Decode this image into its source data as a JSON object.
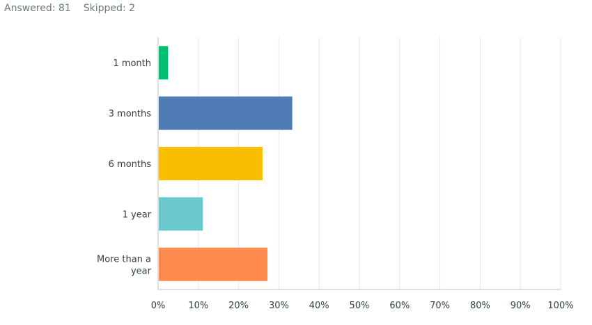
{
  "summary": {
    "answered": "Answered: 81",
    "skipped": "Skipped: 2"
  },
  "chart_data": {
    "type": "bar",
    "orientation": "horizontal",
    "categories": [
      "1 month",
      "3 months",
      "6 months",
      "1 year",
      "More than a year"
    ],
    "values": [
      2.47,
      33.33,
      25.93,
      11.11,
      27.16
    ],
    "unit": "%",
    "xlim": [
      0,
      100
    ],
    "x_ticks": [
      "0%",
      "10%",
      "20%",
      "30%",
      "40%",
      "50%",
      "60%",
      "70%",
      "80%",
      "90%",
      "100%"
    ],
    "grid": "vertical",
    "colors": [
      "#00bf6f",
      "#507cb6",
      "#f9be00",
      "#6bc8cd",
      "#ff8b4f"
    ],
    "title": "",
    "xlabel": "",
    "ylabel": ""
  }
}
